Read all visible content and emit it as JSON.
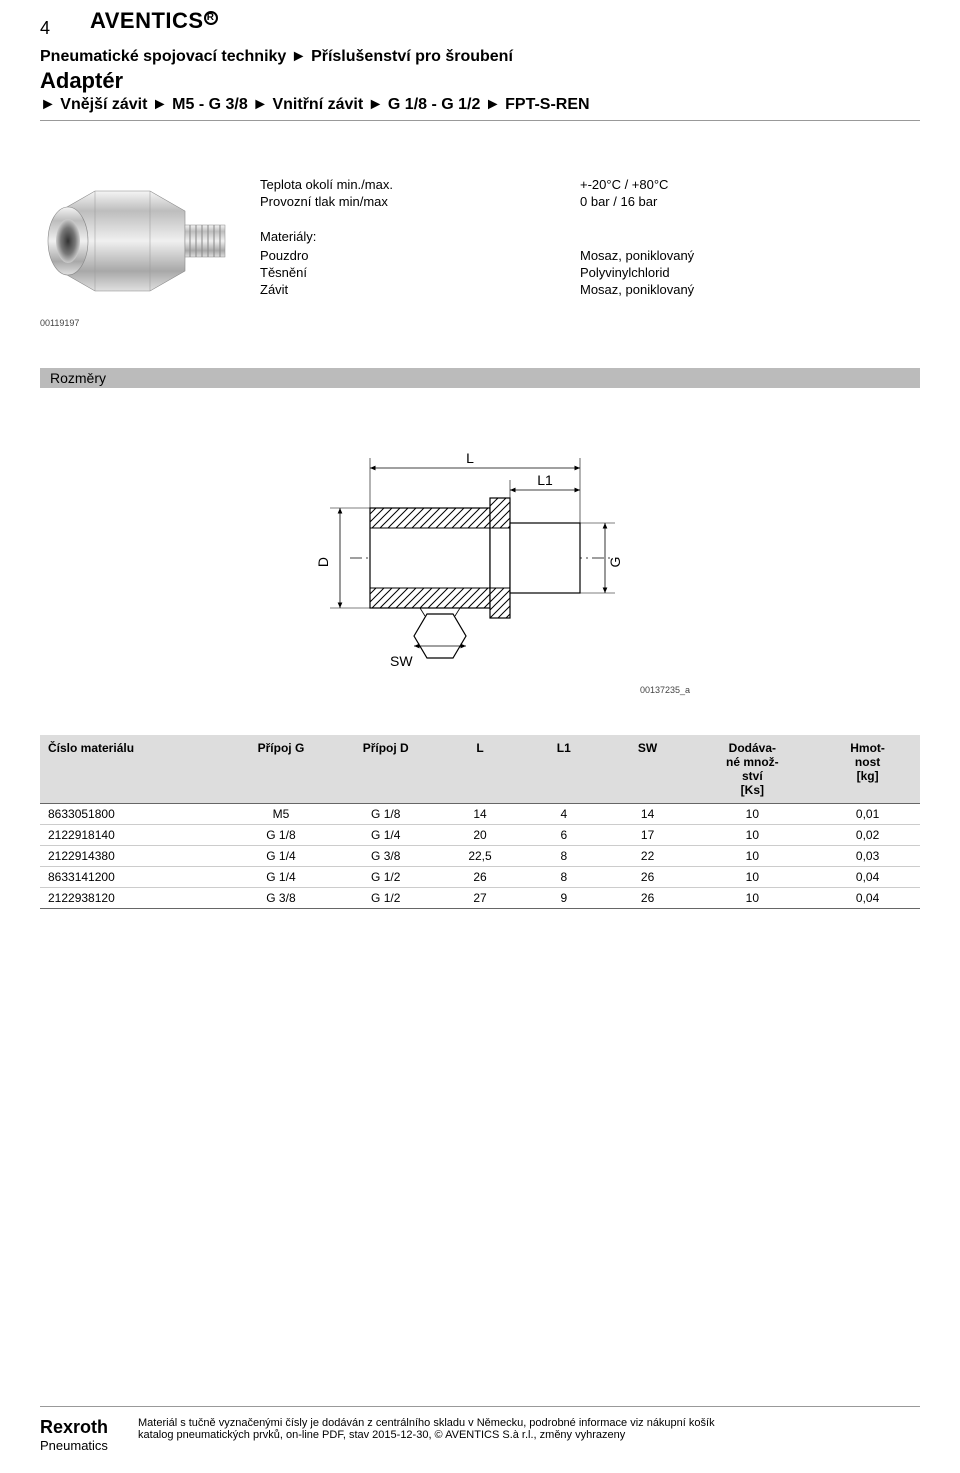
{
  "page_number": "4",
  "brand_logo_text": "AVENTICS",
  "breadcrumb": {
    "part1": "Pneumatické spojovací techniky",
    "part2": "Příslušenství pro šroubení"
  },
  "product": {
    "title": "Adaptér",
    "sub_parts": [
      "Vnější závit",
      "M5 - G 3/8",
      "Vnitřní závit",
      "G 1/8 - G 1/2",
      "FPT-S-REN"
    ]
  },
  "image_ref": "00119197",
  "specs": {
    "rows": [
      {
        "label": "Teplota okolí min./max.",
        "value": "+-20°C / +80°C"
      },
      {
        "label": "Provozní tlak min/max",
        "value": "0 bar / 16 bar"
      }
    ],
    "materials_heading": "Materiály:",
    "materials": [
      {
        "label": "Pouzdro",
        "value": "Mosaz, poniklovaný"
      },
      {
        "label": "Těsnění",
        "value": "Polyvinylchlorid"
      },
      {
        "label": "Závit",
        "value": "Mosaz, poniklovaný"
      }
    ]
  },
  "dimensions_heading": "Rozměry",
  "drawing": {
    "labels": {
      "L": "L",
      "L1": "L1",
      "D": "D",
      "G": "G",
      "SW": "SW"
    },
    "ref": "00137235_a",
    "colors": {
      "fill": "#ffffff",
      "line": "#000000",
      "hatch": "#000000",
      "dim": "#000000"
    }
  },
  "table": {
    "columns": [
      "Číslo materiálu",
      "Přípoj G",
      "Přípoj D",
      "L",
      "L1",
      "SW",
      "Dodáva-\nné množ-\nství\n[Ks]",
      "Hmot-\nnost\n[kg]"
    ],
    "col_widths_pct": [
      18,
      10,
      10,
      8,
      8,
      8,
      12,
      10
    ],
    "rows": [
      [
        "8633051800",
        "M5",
        "G 1/8",
        "14",
        "4",
        "14",
        "10",
        "0,01"
      ],
      [
        "2122918140",
        "G 1/8",
        "G 1/4",
        "20",
        "6",
        "17",
        "10",
        "0,02"
      ],
      [
        "2122914380",
        "G 1/4",
        "G 3/8",
        "22,5",
        "8",
        "22",
        "10",
        "0,03"
      ],
      [
        "8633141200",
        "G 1/4",
        "G 1/2",
        "26",
        "8",
        "26",
        "10",
        "0,04"
      ],
      [
        "2122938120",
        "G 3/8",
        "G 1/2",
        "27",
        "9",
        "26",
        "10",
        "0,04"
      ]
    ]
  },
  "footer": {
    "logo": "Rexroth",
    "logo_sub": "Pneumatics",
    "line1": "Materiál s tučně vyznačenými čísly je dodáván z centrálního skladu v Německu, podrobné informace viz nákupní košík",
    "line2": "katalog pneumatických prvků, on-line PDF, stav 2015-12-30, © AVENTICS S.à r.l., změny vyhrazeny"
  }
}
